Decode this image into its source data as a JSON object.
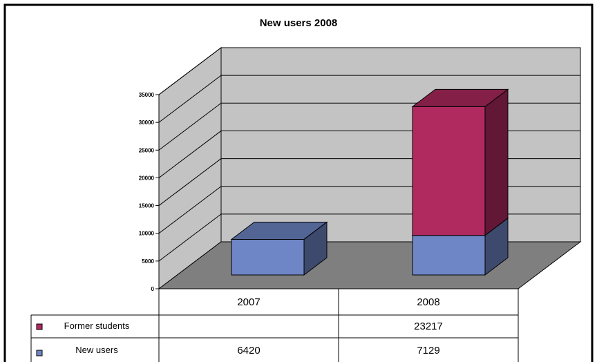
{
  "chart_data": {
    "type": "bar",
    "stacked": true,
    "three_d": true,
    "title": "New users 2008",
    "categories": [
      "2007",
      "2008"
    ],
    "series": [
      {
        "name": "New users",
        "values": [
          6420,
          7129
        ],
        "table_labels": [
          "6420",
          "7129"
        ]
      },
      {
        "name": "Former students",
        "values": [
          null,
          23217
        ],
        "table_labels": [
          "",
          "23217"
        ]
      }
    ],
    "ylim": [
      0,
      35000
    ],
    "yticks": [
      0,
      5000,
      10000,
      15000,
      20000,
      25000,
      30000,
      35000
    ],
    "ytick_labels": [
      "0",
      "5000",
      "10000",
      "15000",
      "20000",
      "25000",
      "30000",
      "35000"
    ],
    "grid": true,
    "legend": "data-table",
    "colors": {
      "New users": "#6f86c6",
      "Former students": "#b02a60",
      "walls": "#c3c3c3",
      "floor": "#7f7f7f"
    }
  }
}
